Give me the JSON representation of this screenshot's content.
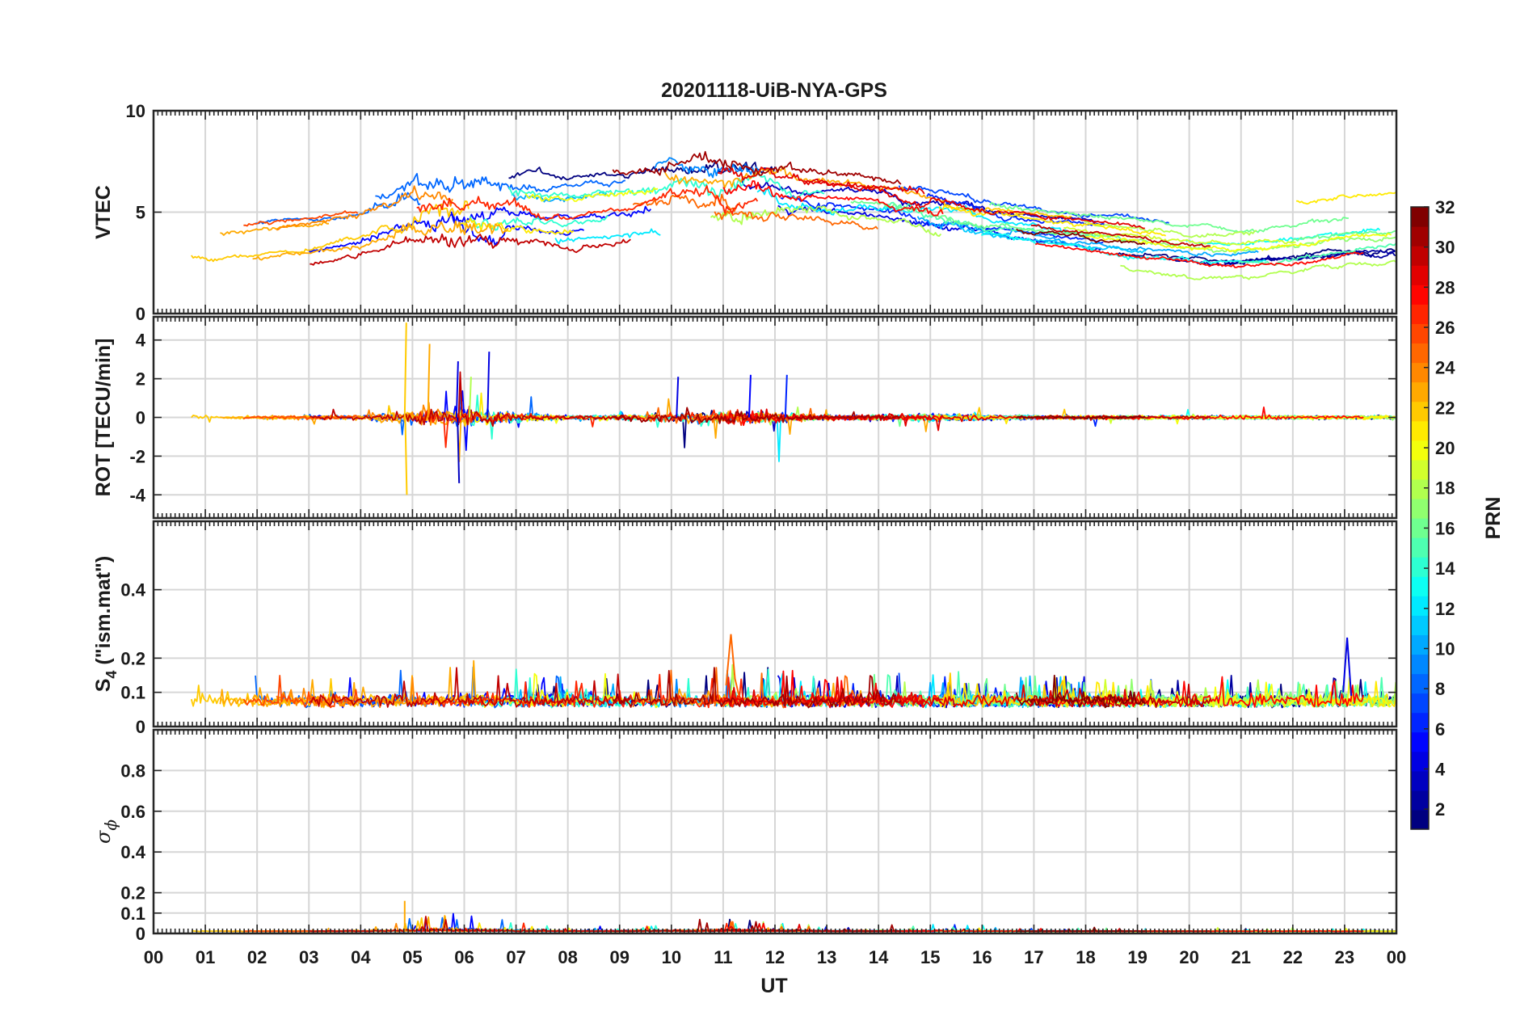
{
  "chart_data": {
    "type": "line",
    "title": "20201118-UiB-NYA-GPS",
    "xlabel": "UT",
    "xlim": [
      0,
      24
    ],
    "x_tick_labels": [
      "00",
      "01",
      "02",
      "03",
      "04",
      "05",
      "06",
      "07",
      "08",
      "09",
      "10",
      "11",
      "12",
      "13",
      "14",
      "15",
      "16",
      "17",
      "18",
      "19",
      "20",
      "21",
      "22",
      "23",
      "00"
    ],
    "panels": [
      {
        "id": "vtec",
        "ylabel": "VTEC",
        "ylim": [
          0,
          10
        ],
        "yticks": [
          0,
          5,
          10
        ],
        "ytick_labels": [
          "0",
          "5",
          "10"
        ],
        "profile": [
          [
            0,
            3.9
          ],
          [
            1,
            3.7
          ],
          [
            2,
            3.9
          ],
          [
            3,
            4.2
          ],
          [
            4,
            4.6
          ],
          [
            5,
            5.4
          ],
          [
            6,
            5.6
          ],
          [
            7,
            5.5
          ],
          [
            8,
            5.3
          ],
          [
            9,
            5.6
          ],
          [
            10,
            6.0
          ],
          [
            11,
            5.9
          ],
          [
            12,
            5.8
          ],
          [
            13,
            5.6
          ],
          [
            14,
            5.3
          ],
          [
            15,
            4.9
          ],
          [
            16,
            4.5
          ],
          [
            17,
            4.2
          ],
          [
            18,
            3.9
          ],
          [
            19,
            3.6
          ],
          [
            20,
            3.3
          ],
          [
            21,
            3.2
          ],
          [
            22,
            3.4
          ],
          [
            23,
            3.7
          ],
          [
            24,
            3.9
          ]
        ],
        "spread": 1.4
      },
      {
        "id": "rot",
        "ylabel": "ROT [TECU/min]",
        "ylim": [
          -5.2,
          5.2
        ],
        "yticks": [
          -4,
          -2,
          0,
          2,
          4
        ],
        "ytick_labels": [
          "-4",
          "-2",
          "0",
          "2",
          "4"
        ],
        "max_abs": 4.9,
        "max_abs_at_ut": 4.85
      },
      {
        "id": "s4",
        "ylabel": "S",
        "ylabel_sub": "4",
        "ylabel_suffix": " (\"ism.mat\")",
        "ylim": [
          0,
          0.6
        ],
        "yticks": [
          0,
          0.1,
          0.2,
          0.4
        ],
        "ytick_labels": [
          "0",
          "0.1",
          "0.2",
          "0.4"
        ],
        "peak": 0.27,
        "peak_at_ut": 11.15
      },
      {
        "id": "sigma_phi",
        "ylabel": "σ",
        "ylabel_sub": "ϕ",
        "ylim": [
          0,
          1.0
        ],
        "yticks": [
          0,
          0.1,
          0.2,
          0.4,
          0.6,
          0.8
        ],
        "ytick_labels": [
          "0",
          "0.1",
          "0.2",
          "0.4",
          "0.6",
          "0.8"
        ],
        "peak": 0.16,
        "peak_at_ut": 4.85
      }
    ],
    "colorbar": {
      "label": "PRN",
      "range": [
        1,
        32
      ],
      "ticks": [
        2,
        4,
        6,
        8,
        10,
        12,
        14,
        16,
        18,
        20,
        22,
        24,
        26,
        28,
        30,
        32
      ],
      "tick_labels": [
        "2",
        "4",
        "6",
        "8",
        "10",
        "12",
        "14",
        "16",
        "18",
        "20",
        "22",
        "24",
        "26",
        "28",
        "30",
        "32"
      ],
      "colormap": "jet"
    },
    "series_count": 32
  }
}
